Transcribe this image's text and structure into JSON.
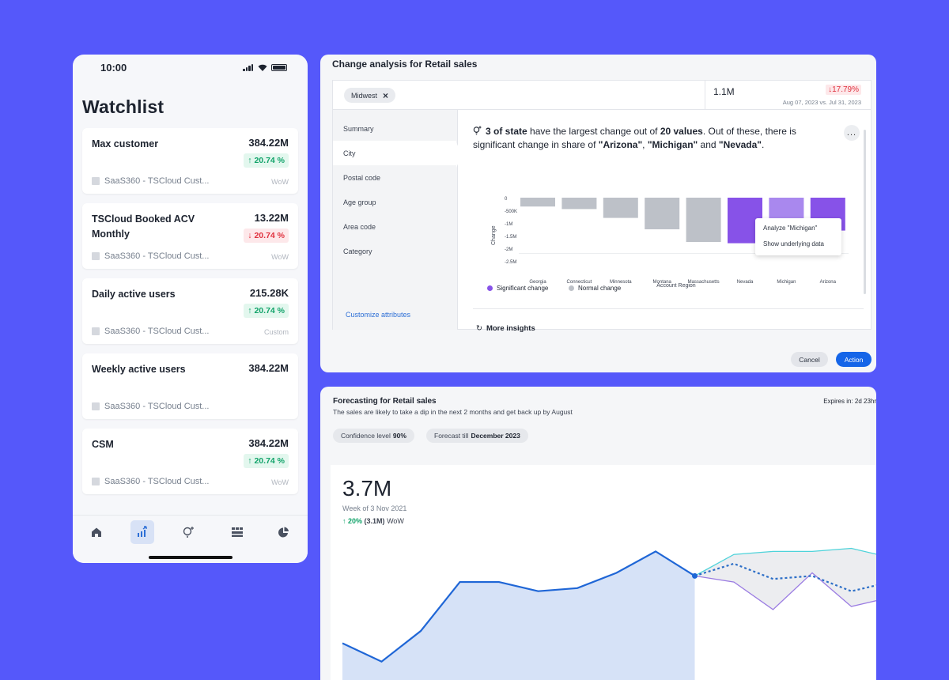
{
  "phone": {
    "status_time": "10:00",
    "title": "Watchlist",
    "cards": [
      {
        "name": "Max customer",
        "value": "384.22M",
        "change": "20.74 %",
        "direction": "up",
        "source": "SaaS360 - TSCloud Cust...",
        "period": "WoW"
      },
      {
        "name": "TSCloud Booked ACV Monthly",
        "value": "13.22M",
        "change": "20.74 %",
        "direction": "down",
        "source": "SaaS360 - TSCloud Cust...",
        "period": "WoW"
      },
      {
        "name": "Daily active users",
        "value": "215.28K",
        "change": "20.74 %",
        "direction": "up",
        "source": "SaaS360 - TSCloud Cust...",
        "period": "Custom"
      },
      {
        "name": "Weekly active users",
        "value": "384.22M",
        "change": "",
        "direction": "",
        "source": "SaaS360 - TSCloud Cust...",
        "period": ""
      },
      {
        "name": "CSM",
        "value": "384.22M",
        "change": "20.74 %",
        "direction": "up",
        "source": "SaaS360 - TSCloud Cust...",
        "period": "WoW"
      }
    ],
    "tabs": [
      "home-icon",
      "chart-icon",
      "insight-icon",
      "grid-icon",
      "pie-icon"
    ],
    "active_tab": 1
  },
  "change_analysis": {
    "title": "Change analysis for Retail sales",
    "filter_chip": "Midwest",
    "value": "1.1M",
    "change": "↓17.79%",
    "date_range": "Aug 07, 2023 vs. Jul 31, 2023",
    "sidebar": [
      "Summary",
      "City",
      "Postal code",
      "Age group",
      "Area code",
      "Category"
    ],
    "sidebar_active": 1,
    "customize_link": "Customize attributes",
    "insight": {
      "p1": "3 of state",
      "t1": " have the largest change out of ",
      "p2": "20 values",
      "t2": ". Out of these, there is significant change in share of ",
      "p3": "\"Arizona\"",
      "t3": ", ",
      "p4": "\"Michigan\"",
      "t4": " and ",
      "p5": "\"Nevada\"",
      "t5": "."
    },
    "more_menu": "...",
    "context_menu": [
      "Analyze \"Michigan\"",
      "Show underlying data"
    ],
    "more_insights": "More insights",
    "cancel": "Cancel",
    "action": "Action",
    "colors": {
      "significant": "#8752E8",
      "significant_light": "#A988EE",
      "normal": "#BDC1C8"
    }
  },
  "chart_data": [
    {
      "type": "bar",
      "categories": [
        "Georgia",
        "Connecticut",
        "Minnesota",
        "Montana",
        "Massachusetts",
        "Nevada",
        "Michigan",
        "Arizona"
      ],
      "values": [
        -0.35,
        -0.45,
        -0.8,
        -1.25,
        -1.75,
        -1.8,
        -1.3,
        -1.3
      ],
      "significant": [
        false,
        false,
        false,
        false,
        false,
        true,
        true,
        true
      ],
      "xlabel": "Account Region",
      "ylabel": "Change",
      "yticks": [
        "0",
        "-500K",
        "-1M",
        "-1.5M",
        "-2M",
        "-2.5M"
      ],
      "ylim": [
        -2.5,
        0
      ],
      "legend": [
        "Significant change",
        "Normal change"
      ],
      "legend_position": "bottom-left"
    },
    {
      "type": "line",
      "x": [
        0,
        1,
        2,
        3,
        4,
        5,
        6,
        7,
        8,
        9,
        10,
        11,
        12,
        13,
        14
      ],
      "actual": [
        3.6,
        3.3,
        3.8,
        4.6,
        4.6,
        4.45,
        4.5,
        4.75,
        5.1,
        4.7
      ],
      "forecast_mean": [
        null,
        null,
        null,
        null,
        null,
        null,
        null,
        null,
        null,
        4.7,
        4.9,
        4.65,
        4.7,
        4.45,
        4.6
      ],
      "forecast_high": [
        null,
        null,
        null,
        null,
        null,
        null,
        null,
        null,
        null,
        4.7,
        5.05,
        5.1,
        5.1,
        5.15,
        5.0
      ],
      "forecast_low": [
        null,
        null,
        null,
        null,
        null,
        null,
        null,
        null,
        null,
        4.7,
        4.6,
        4.15,
        4.75,
        4.2,
        4.35
      ],
      "colors": {
        "actual": "#1F66D6",
        "fill": "#D6E2F7",
        "high": "#4ED3DA",
        "low": "#9A7BE2",
        "mean": "#2D6FC7",
        "band": "#ECEDF0"
      }
    }
  ],
  "forecast": {
    "title": "Forecasting for Retail sales",
    "subtitle": "The sales are likely to take a dip in the next 2 months and get back up by August",
    "expires": "Expires in: 2d 23hr",
    "pill1_label": "Confidence level",
    "pill1_value": "90%",
    "pill2_label": "Forecast till",
    "pill2_value": "December 2023",
    "big_value": "3.7M",
    "week": "Week of 3 Nov 2021",
    "change_pct": "↑ 20%",
    "change_abs": "(3.1M)",
    "change_period": "WoW"
  }
}
